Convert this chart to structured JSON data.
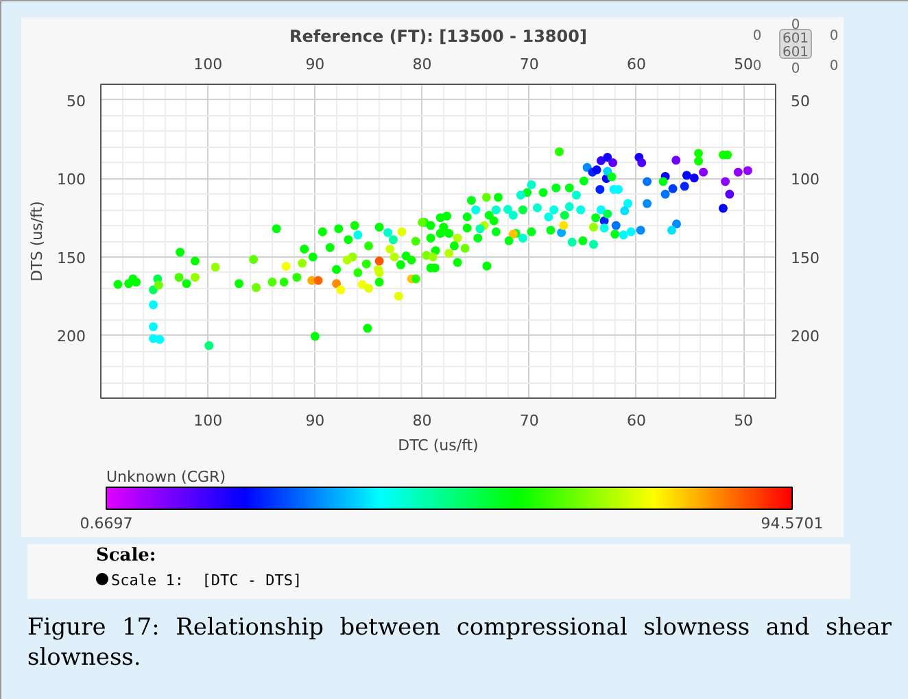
{
  "chart_data": {
    "type": "scatter",
    "title": "Reference (FT): [13500 - 13800]",
    "xlabel": "DTC (us/ft)",
    "ylabel": "DTS (us/ft)",
    "clabel": "Unknown (CGR)",
    "xlim": [
      110,
      47
    ],
    "ylim": [
      240,
      40
    ],
    "xticks": [
      100,
      90,
      80,
      70,
      60,
      50
    ],
    "x2lim": [
      110,
      47
    ],
    "x2ticks": [
      100,
      90,
      80,
      70,
      60,
      50
    ],
    "yticks": [
      50,
      100,
      150,
      200
    ],
    "y2lim": [
      240,
      40
    ],
    "y2ticks": [
      50,
      100,
      150,
      200
    ],
    "clim": [
      0.6697,
      94.5701
    ],
    "cticks": [
      0.6697,
      94.5701
    ],
    "grid": true,
    "marker": "circle",
    "x": [
      108.4,
      107.4,
      107,
      106.7,
      105.1,
      105.1,
      105.1,
      104.5,
      105.1,
      104.7,
      104.6,
      102.6,
      102.7,
      102,
      101.2,
      101.2,
      99.9,
      99.3,
      97.1,
      95.75,
      95.5,
      94,
      93.6,
      92.9,
      92.7,
      91.7,
      90,
      91.2,
      91,
      90.2,
      90.3,
      89.7,
      89.3,
      88.6,
      88,
      87.8,
      87.6,
      86.9,
      86.5,
      86.3,
      86,
      85.6,
      85.1,
      85.2,
      84,
      84.1,
      84,
      83.2,
      82.7,
      82.6,
      82.2,
      81.9,
      81.5,
      81,
      80.6,
      80.6,
      79.8,
      79.2,
      78.8,
      78,
      77.7,
      84,
      67.2,
      63.3,
      62.7,
      62.2,
      64.6,
      64.1,
      63.7,
      62.8,
      62.7,
      62.3,
      59.75,
      59.5,
      56.3,
      54.2,
      54.2,
      51.9,
      51.5,
      53.75,
      50.5,
      49.6,
      51.7,
      51.3,
      51.9,
      57.3,
      55.3,
      54.6,
      59,
      57.5,
      57.3,
      56.6,
      55.5,
      59,
      56.25,
      56.7,
      59.6,
      60.5,
      61.2,
      61.9,
      63,
      61.7,
      62.1,
      63.4,
      60.8,
      61.1,
      63.3,
      62.7,
      63.8,
      64,
      63,
      62,
      64,
      65,
      66,
      67,
      66.8,
      68,
      68.2,
      67.7,
      66.7,
      66.25,
      65.2,
      65.6,
      64.9,
      66.25,
      67.5,
      68.7,
      69.25,
      69.8,
      70.2,
      70.8,
      70.6,
      71.5,
      72,
      72.9,
      74,
      73.1,
      73.75,
      75,
      75.4,
      75.8,
      73.3,
      71.25,
      69.8,
      70.6,
      71.5,
      71.9,
      74.2,
      73.1,
      74.8,
      73.96,
      76,
      76.7,
      77.5,
      78.75,
      79.2,
      79.6,
      77.5,
      78.3,
      76.7,
      79.2,
      80,
      78.3,
      75.8,
      74.6,
      83,
      85,
      87,
      82,
      79,
      81,
      84,
      86,
      88,
      77,
      85
    ],
    "values": [
      167.5,
      167,
      164,
      166,
      180.5,
      194.5,
      202,
      202.6,
      171,
      164,
      168,
      147,
      163,
      167,
      152.6,
      163,
      206.5,
      156.5,
      167,
      151.6,
      169.5,
      166,
      132,
      166,
      156,
      163,
      200.6,
      154,
      145,
      150,
      165,
      165,
      134,
      144,
      167,
      132,
      171,
      139,
      150,
      130,
      136,
      167.5,
      195.5,
      154.5,
      131,
      158,
      166,
      134.5,
      139,
      150,
      175,
      134,
      149.4,
      164,
      164,
      140,
      128,
      138,
      157,
      131,
      124,
      152.6,
      83,
      88.7,
      86.5,
      90,
      93,
      96,
      94.5,
      100,
      95.5,
      99,
      86.5,
      90,
      88.4,
      84,
      89,
      85,
      85,
      96,
      96,
      95,
      102,
      110,
      119,
      98.7,
      98,
      99.7,
      102,
      102,
      110,
      106.5,
      105,
      116,
      129,
      133,
      133,
      134,
      136,
      130,
      127,
      107,
      107,
      107,
      116,
      120.6,
      120,
      122.6,
      125,
      131,
      131.6,
      135.5,
      142,
      139.7,
      140.6,
      134.5,
      130,
      133,
      124.5,
      120,
      123.5,
      118,
      120,
      110.6,
      101.6,
      106,
      106,
      109,
      118.7,
      104,
      109,
      110.6,
      120,
      123.5,
      119.7,
      112,
      112,
      120,
      123.5,
      120,
      114,
      124.5,
      127,
      135,
      134,
      138,
      135.5,
      139.7,
      130,
      134,
      138,
      155.8,
      144.5,
      153.5,
      147.7,
      146,
      157,
      149,
      135,
      135,
      138,
      130,
      128,
      125,
      131.6,
      132,
      145,
      143,
      152,
      155,
      150,
      152,
      160,
      160,
      158,
      143,
      170
    ],
    "cvalues": [
      57,
      57,
      57,
      57,
      38,
      38,
      38,
      38,
      50,
      52,
      65,
      57,
      62,
      57,
      57,
      68,
      48,
      68,
      57,
      64,
      65,
      63,
      56,
      60,
      75,
      60,
      57,
      68,
      57,
      57,
      82,
      87,
      57,
      57,
      84,
      57,
      75,
      57,
      68,
      58,
      40,
      75,
      57,
      60,
      57,
      72,
      58,
      42,
      45,
      70,
      74,
      74,
      57,
      80,
      60,
      62,
      57,
      57,
      57,
      57,
      57,
      88,
      60,
      15,
      18,
      12,
      30,
      22,
      20,
      20,
      35,
      55,
      18,
      13,
      10,
      58,
      58,
      58,
      58,
      8,
      7,
      7,
      8,
      12,
      20,
      20,
      20,
      18,
      28,
      55,
      28,
      24,
      22,
      30,
      30,
      36,
      30,
      38,
      38,
      28,
      22,
      38,
      38,
      22,
      38,
      36,
      38,
      52,
      55,
      68,
      40,
      55,
      45,
      55,
      45,
      32,
      78,
      55,
      40,
      40,
      52,
      42,
      40,
      42,
      55,
      55,
      55,
      55,
      42,
      42,
      55,
      42,
      52,
      42,
      42,
      57,
      64,
      42,
      55,
      40,
      55,
      55,
      57,
      55,
      55,
      42,
      80,
      55,
      70,
      55,
      55,
      57,
      65,
      57,
      70,
      57,
      57,
      66,
      57,
      57,
      70,
      57,
      64,
      57,
      57,
      44,
      72,
      60,
      70,
      57,
      68,
      58,
      72,
      60,
      57,
      57,
      74
    ],
    "annotations": [
      "Figure 17: Relationship between compressional slowness and shear slowness.",
      "Scale:",
      "Scale 1:  [DTC - DTS]",
      "0",
      "601",
      "601",
      "0",
      "0",
      "0",
      "0",
      "0"
    ]
  }
}
